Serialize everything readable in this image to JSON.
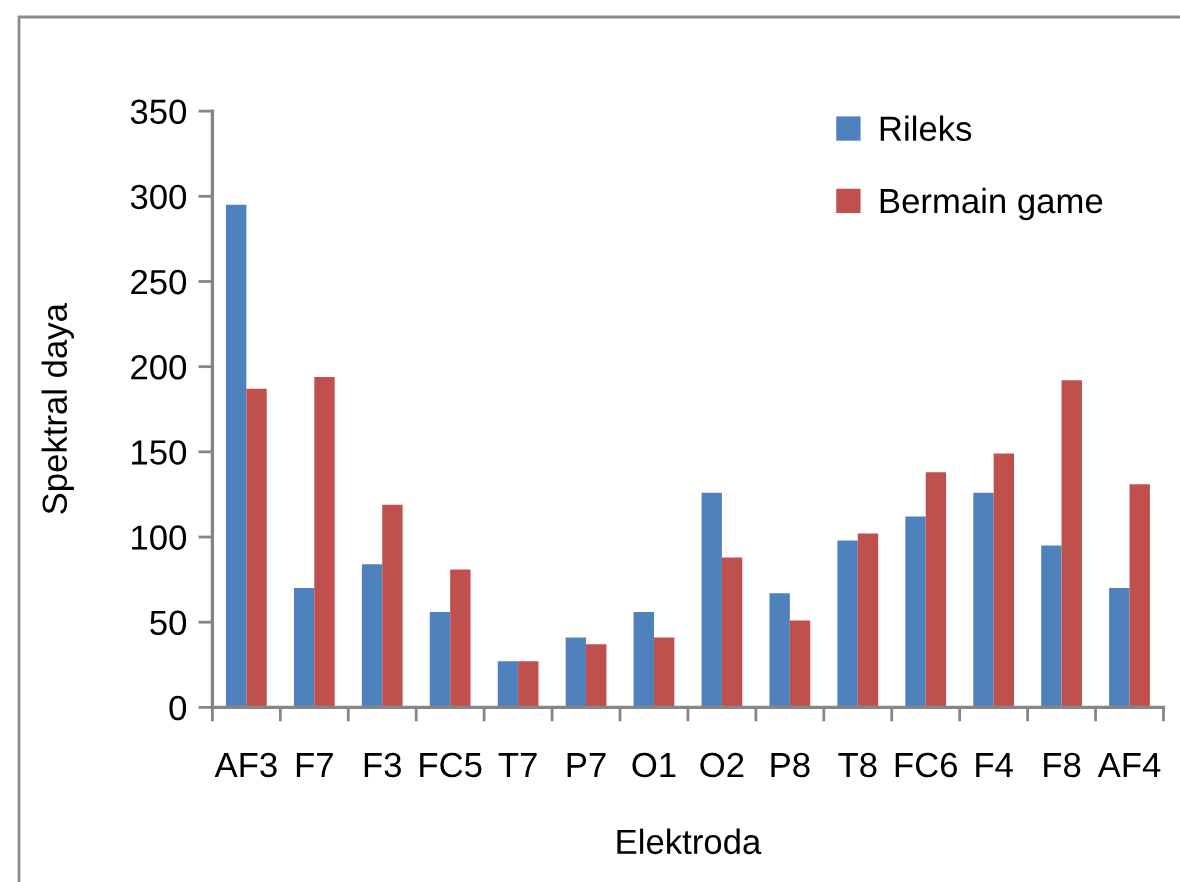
{
  "chart_data": {
    "type": "bar",
    "xlabel": "Elektroda",
    "ylabel": "Spektral daya",
    "categories": [
      "AF3",
      "F7",
      "F3",
      "FC5",
      "T7",
      "P7",
      "O1",
      "O2",
      "P8",
      "T8",
      "FC6",
      "F4",
      "F8",
      "AF4"
    ],
    "series": [
      {
        "name": "Rileks",
        "color": "#4f81bd",
        "values": [
          295,
          70,
          84,
          56,
          27,
          41,
          56,
          126,
          67,
          98,
          112,
          126,
          95,
          70
        ]
      },
      {
        "name": "Bermain game",
        "color": "#c0504d",
        "values": [
          187,
          194,
          119,
          81,
          27,
          37,
          41,
          88,
          51,
          102,
          138,
          149,
          192,
          131
        ]
      }
    ],
    "ylim": [
      0,
      350
    ],
    "yticks": [
      0,
      50,
      100,
      150,
      200,
      250,
      300,
      350
    ],
    "grid": false,
    "legend": "top right"
  }
}
